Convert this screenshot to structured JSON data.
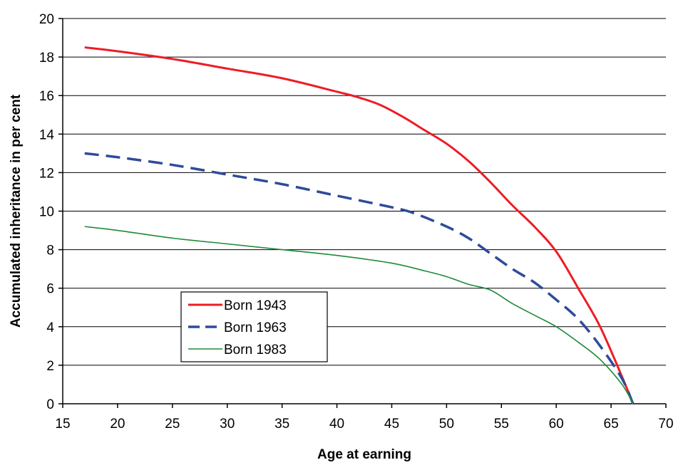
{
  "chart_data": {
    "type": "line",
    "xlabel": "Age at earning",
    "ylabel": "Accumulated inheritance in per cent",
    "xlim": [
      15,
      70
    ],
    "ylim": [
      0,
      20
    ],
    "x_ticks": [
      15,
      20,
      25,
      30,
      35,
      40,
      45,
      50,
      55,
      60,
      65,
      70
    ],
    "y_ticks": [
      0,
      2,
      4,
      6,
      8,
      10,
      12,
      14,
      16,
      18,
      20
    ],
    "grid": "horizontal",
    "legend_position": "lower-left",
    "series": [
      {
        "name": "Born 1943",
        "color": "#ee1c25",
        "style": "solid",
        "x": [
          17,
          20,
          25,
          30,
          35,
          40,
          42,
          44,
          46,
          48,
          50,
          52,
          54,
          56,
          58,
          60,
          62,
          64,
          66,
          67
        ],
        "y": [
          18.5,
          18.3,
          17.9,
          17.4,
          16.9,
          16.2,
          15.9,
          15.5,
          14.9,
          14.2,
          13.5,
          12.6,
          11.5,
          10.3,
          9.2,
          7.9,
          6.0,
          4.0,
          1.4,
          0
        ]
      },
      {
        "name": "Born 1963",
        "color": "#2e4b9b",
        "style": "dashed",
        "x": [
          17,
          20,
          25,
          30,
          35,
          40,
          45,
          47,
          50,
          52,
          54,
          56,
          58,
          60,
          62,
          64,
          66,
          67
        ],
        "y": [
          13.0,
          12.8,
          12.4,
          11.9,
          11.4,
          10.8,
          10.2,
          9.9,
          9.2,
          8.6,
          7.8,
          7.0,
          6.3,
          5.4,
          4.4,
          3.0,
          1.3,
          0
        ]
      },
      {
        "name": "Born 1983",
        "color": "#1f8a3a",
        "style": "solid-thin",
        "x": [
          17,
          20,
          25,
          30,
          35,
          40,
          45,
          48,
          50,
          52,
          54,
          56,
          58,
          60,
          62,
          64,
          66,
          67
        ],
        "y": [
          9.2,
          9.0,
          8.6,
          8.3,
          8.0,
          7.7,
          7.3,
          6.9,
          6.6,
          6.2,
          5.9,
          5.2,
          4.6,
          4.0,
          3.2,
          2.3,
          1.0,
          0
        ]
      }
    ]
  }
}
